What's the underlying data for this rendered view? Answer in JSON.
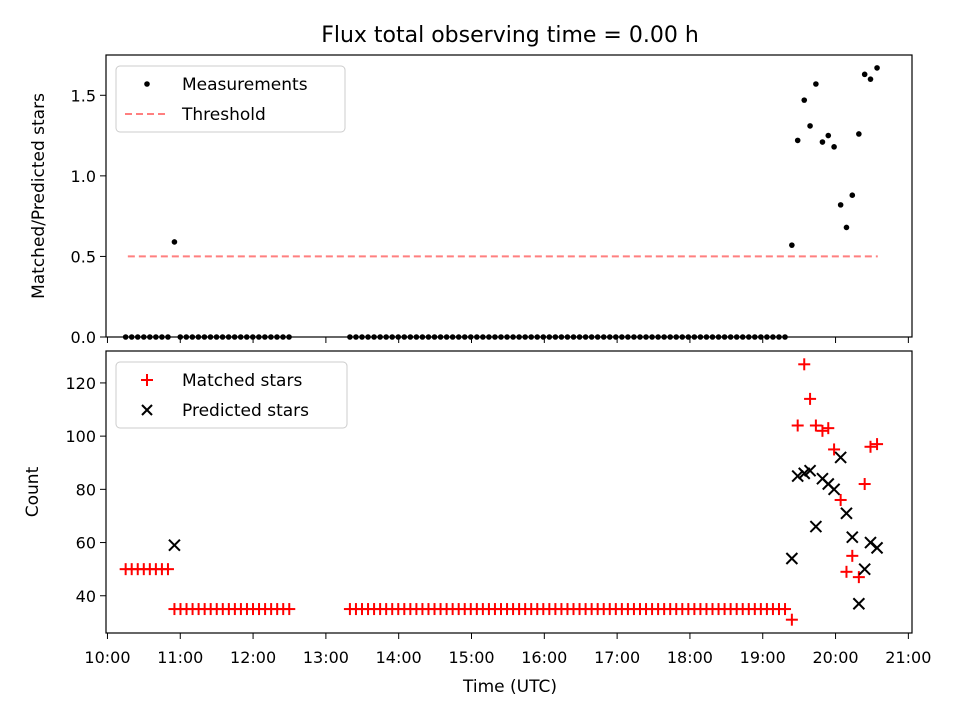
{
  "chart_data": [
    {
      "type": "scatter",
      "title": "Flux total observing time = 0.00 h",
      "xlabel": "",
      "ylabel": "Matched/Predicted stars",
      "xlim_hours": [
        9.98,
        21.05
      ],
      "ylim": [
        0,
        1.75
      ],
      "yticks": [
        0.0,
        0.5,
        1.0,
        1.5
      ],
      "ytick_labels": [
        "0.0",
        "0.5",
        "1.0",
        "1.5"
      ],
      "legend": {
        "location": "upper-left",
        "entries": [
          "Measurements",
          "Threshold"
        ]
      },
      "threshold": {
        "name": "Threshold",
        "value": 0.5,
        "x_start": 10.28,
        "x_end": 20.58,
        "color": "#ff7f7f"
      },
      "series": [
        {
          "name": "Measurements",
          "marker": "dot",
          "color": "#000000",
          "x": [
            10.92,
            19.4,
            19.48,
            19.57,
            19.65,
            19.73,
            19.82,
            19.9,
            19.98,
            20.07,
            20.15,
            20.23,
            20.32,
            20.4,
            20.48,
            20.57
          ],
          "y": [
            0.59,
            0.57,
            1.22,
            1.47,
            1.31,
            1.57,
            1.21,
            1.25,
            1.18,
            0.82,
            0.68,
            0.88,
            1.26,
            1.63,
            1.6,
            1.67
          ]
        }
      ],
      "zero_runs": [
        {
          "start": 10.25,
          "end": 10.85,
          "step": 0.083
        },
        {
          "start": 11.0,
          "end": 12.5,
          "step": 0.083
        },
        {
          "start": 13.33,
          "end": 19.33,
          "step": 0.083
        }
      ]
    },
    {
      "type": "scatter",
      "title": "",
      "xlabel": "Time (UTC)",
      "ylabel": "Count",
      "xlim_hours": [
        9.98,
        21.05
      ],
      "ylim": [
        26,
        132
      ],
      "yticks": [
        40,
        60,
        80,
        100,
        120
      ],
      "ytick_labels": [
        "40",
        "60",
        "80",
        "100",
        "120"
      ],
      "xticks_hours": [
        10,
        11,
        12,
        13,
        14,
        15,
        16,
        17,
        18,
        19,
        20,
        21
      ],
      "xtick_labels": [
        "10:00",
        "11:00",
        "12:00",
        "13:00",
        "14:00",
        "15:00",
        "16:00",
        "17:00",
        "18:00",
        "19:00",
        "20:00",
        "21:00"
      ],
      "legend": {
        "location": "upper-left",
        "entries": [
          "Matched stars",
          "Predicted stars"
        ]
      },
      "series": [
        {
          "name": "Matched stars",
          "marker": "plus",
          "color": "#ff0000",
          "runs": [
            {
              "start": 10.25,
              "end": 10.85,
              "step": 0.083,
              "value": 50
            },
            {
              "start": 10.92,
              "end": 12.5,
              "step": 0.083,
              "value": 35
            },
            {
              "start": 13.33,
              "end": 19.33,
              "step": 0.083,
              "value": 35
            }
          ],
          "x": [
            19.4,
            19.48,
            19.57,
            19.65,
            19.73,
            19.82,
            19.9,
            19.98,
            20.07,
            20.15,
            20.23,
            20.32,
            20.4,
            20.48,
            20.57
          ],
          "y": [
            31,
            104,
            127,
            114,
            104,
            102,
            103,
            95,
            76,
            49,
            55,
            47,
            82,
            96,
            97
          ]
        },
        {
          "name": "Predicted stars",
          "marker": "x",
          "color": "#000000",
          "x": [
            10.92,
            19.4,
            19.48,
            19.57,
            19.65,
            19.73,
            19.82,
            19.9,
            19.98,
            20.07,
            20.15,
            20.23,
            20.32,
            20.4,
            20.48,
            20.57
          ],
          "y": [
            59,
            54,
            85,
            86,
            87,
            66,
            84,
            82,
            80,
            92,
            71,
            62,
            37,
            50,
            60,
            58
          ]
        }
      ]
    }
  ]
}
